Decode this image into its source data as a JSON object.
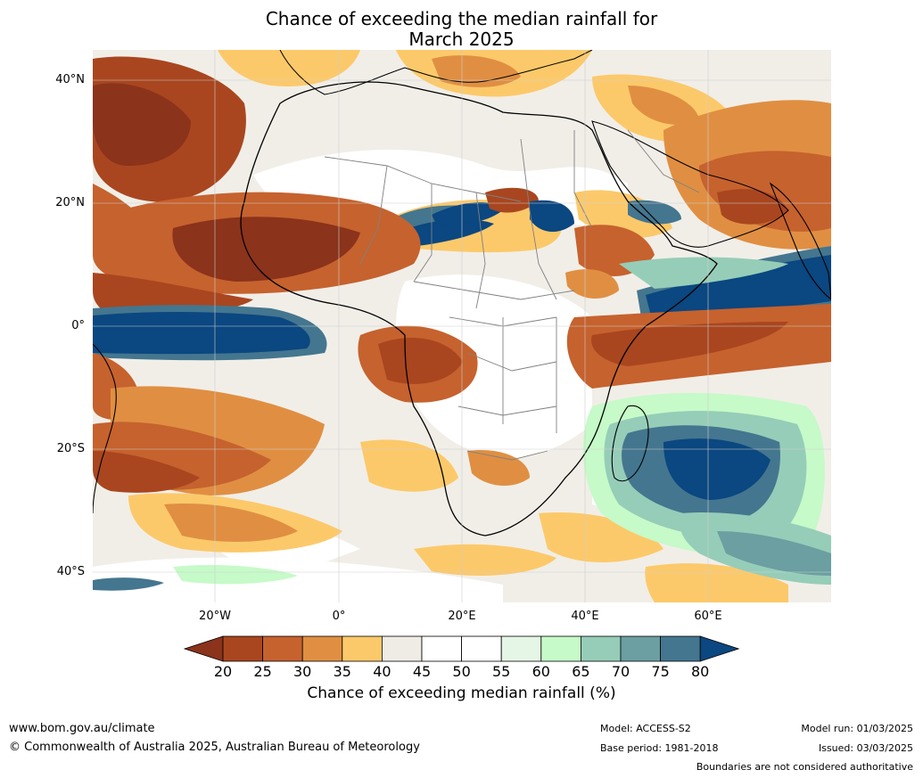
{
  "title_line1": "Chance of exceeding the median rainfall for",
  "title_line2": "March 2025",
  "lat_labels": [
    "40°N",
    "20°N",
    "0°",
    "20°S",
    "40°S"
  ],
  "lon_labels": [
    "20°W",
    "0°",
    "20°E",
    "40°E",
    "60°E"
  ],
  "colorbar": {
    "ticks": [
      "20",
      "25",
      "30",
      "35",
      "40",
      "45",
      "50",
      "55",
      "60",
      "65",
      "70",
      "75",
      "80"
    ],
    "colors": [
      "#8b331b",
      "#a9461f",
      "#c6622e",
      "#e08f42",
      "#fcc96a",
      "#efece6",
      "#ffffff",
      "#ffffff",
      "#e5f5e6",
      "#c6fac8",
      "#96cdb8",
      "#6b9fa2",
      "#44768f",
      "#0b4780"
    ],
    "label": "Chance of exceeding median rainfall (%)"
  },
  "footer": {
    "website": "www.bom.gov.au/climate",
    "copyright": "© Commonwealth of Australia 2025, Australian Bureau of Meteorology",
    "model": "Model: ACCESS-S2",
    "base_period": "Base period: 1981-2018",
    "model_run": "Model run: 01/03/2025",
    "issued": "Issued: 03/03/2025",
    "boundaries": "Boundaries are not considered authoritative"
  }
}
